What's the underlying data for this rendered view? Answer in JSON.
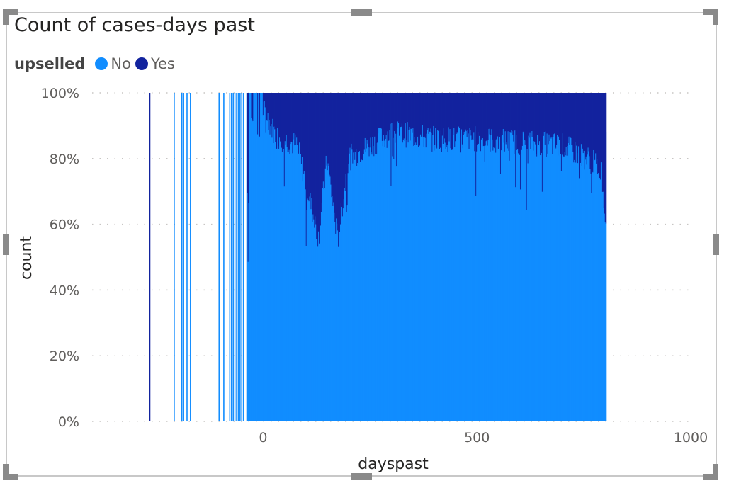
{
  "visual": {
    "title": "Count of cases-days past"
  },
  "legend": {
    "title": "upselled",
    "items": [
      {
        "label": "No",
        "color": "#118DFF"
      },
      {
        "label": "Yes",
        "color": "#12239E"
      }
    ]
  },
  "chart_data": {
    "type": "bar",
    "stacked": "100%",
    "title": "Count of cases-days past",
    "xlabel": "dayspast",
    "ylabel": "count",
    "xlim": [
      -400,
      1000
    ],
    "ylim": [
      0,
      100
    ],
    "x_ticks": [
      0,
      500,
      1000
    ],
    "x_tick_labels": [
      "0",
      "500",
      "1000"
    ],
    "y_ticks": [
      0,
      20,
      40,
      60,
      80,
      100
    ],
    "y_tick_labels": [
      "0%",
      "20%",
      "40%",
      "60%",
      "80%",
      "100%"
    ],
    "grid": "horizontal dotted",
    "legend_position": "top-left",
    "series": [
      {
        "name": "No",
        "color": "#118DFF"
      },
      {
        "name": "Yes",
        "color": "#12239E"
      }
    ],
    "isolated_bars": [
      {
        "x": -265,
        "no_pct": 0,
        "yes_pct": 100
      },
      {
        "x": -208,
        "no_pct": 100,
        "yes_pct": 0
      },
      {
        "x": -190,
        "no_pct": 100,
        "yes_pct": 0
      },
      {
        "x": -186,
        "no_pct": 100,
        "yes_pct": 0
      },
      {
        "x": -178,
        "no_pct": 100,
        "yes_pct": 0
      },
      {
        "x": -170,
        "no_pct": 100,
        "yes_pct": 0
      },
      {
        "x": -103,
        "no_pct": 100,
        "yes_pct": 0
      },
      {
        "x": -92,
        "no_pct": 100,
        "yes_pct": 0
      },
      {
        "x": -78,
        "no_pct": 100,
        "yes_pct": 0
      },
      {
        "x": -74,
        "no_pct": 100,
        "yes_pct": 0
      },
      {
        "x": -70,
        "no_pct": 100,
        "yes_pct": 0
      },
      {
        "x": -66,
        "no_pct": 100,
        "yes_pct": 0
      },
      {
        "x": -62,
        "no_pct": 100,
        "yes_pct": 0
      },
      {
        "x": -58,
        "no_pct": 100,
        "yes_pct": 0
      },
      {
        "x": -54,
        "no_pct": 100,
        "yes_pct": 0
      },
      {
        "x": -50,
        "no_pct": 100,
        "yes_pct": 0
      },
      {
        "x": -46,
        "no_pct": 100,
        "yes_pct": 0
      }
    ],
    "continuous_range": [
      -38,
      803
    ],
    "no_pct_profile": [
      {
        "x": -38,
        "no_pct": 96
      },
      {
        "x": -35,
        "no_pct": 50
      },
      {
        "x": -30,
        "no_pct": 98
      },
      {
        "x": -10,
        "no_pct": 85
      },
      {
        "x": 0,
        "no_pct": 95
      },
      {
        "x": 30,
        "no_pct": 87
      },
      {
        "x": 80,
        "no_pct": 84
      },
      {
        "x": 130,
        "no_pct": 56
      },
      {
        "x": 150,
        "no_pct": 80
      },
      {
        "x": 175,
        "no_pct": 55
      },
      {
        "x": 200,
        "no_pct": 80
      },
      {
        "x": 300,
        "no_pct": 88
      },
      {
        "x": 400,
        "no_pct": 86
      },
      {
        "x": 500,
        "no_pct": 86
      },
      {
        "x": 600,
        "no_pct": 85
      },
      {
        "x": 700,
        "no_pct": 84
      },
      {
        "x": 760,
        "no_pct": 80
      },
      {
        "x": 790,
        "no_pct": 77
      },
      {
        "x": 800,
        "no_pct": 63
      }
    ]
  }
}
